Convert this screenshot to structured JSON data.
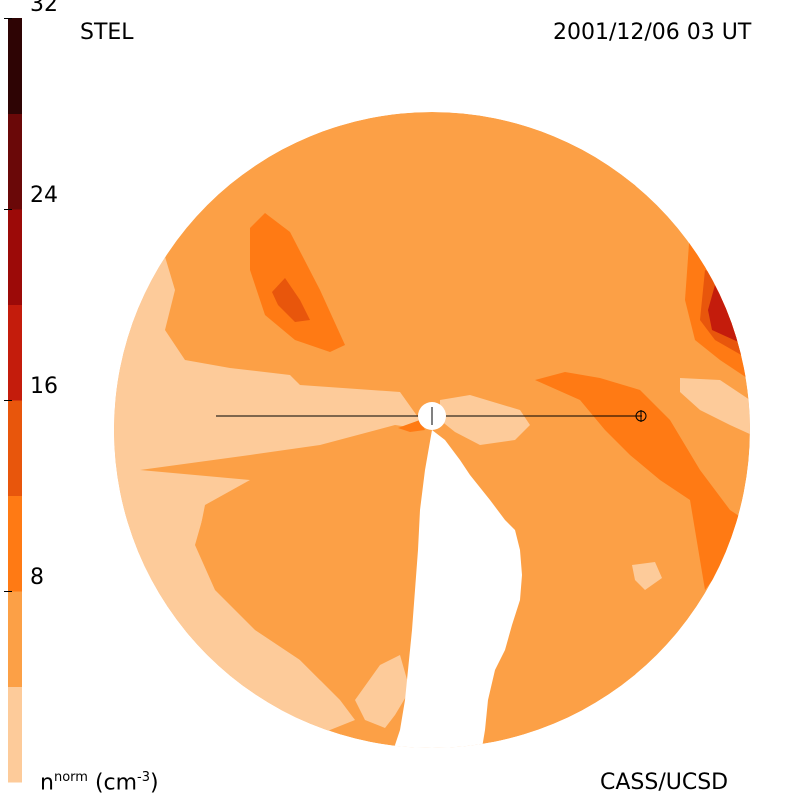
{
  "title_left": "STEL",
  "title_right": "2001/12/06 03 UT",
  "footer_left_base": "n",
  "footer_left_sup": "norm",
  "footer_left_unit": "(cm",
  "footer_left_unit_sup": "-3",
  "footer_left_close": ")",
  "footer_right": "CASS/UCSD",
  "colorbar": {
    "ticks": [
      "8",
      "16",
      "24",
      "32"
    ],
    "colors": [
      "#fdcb9a",
      "#fca046",
      "#ff7a14",
      "#e8560c",
      "#c41c0c",
      "#9c0a08",
      "#6a0808",
      "#2e0404"
    ]
  },
  "colors": {
    "base": "#fca046",
    "light": "#fdcb9a",
    "medium": "#ff7a14",
    "dark": "#e8560c",
    "darker": "#c41c0c"
  },
  "markers": {
    "sun": "sun-marker",
    "earth": "earth-marker"
  }
}
